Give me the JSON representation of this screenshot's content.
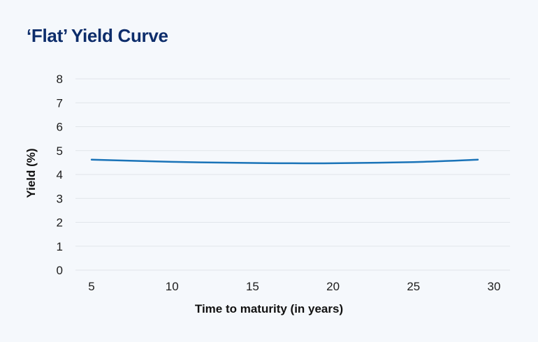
{
  "title": "‘Flat’ Yield Curve",
  "colors": {
    "title": "#0d2d6b",
    "line": "#1a73b8",
    "grid": "#e1e5ea",
    "background": "#f5f8fc"
  },
  "chart_data": {
    "type": "line",
    "title": "‘Flat’ Yield Curve",
    "xlabel": "Time to maturity (in years)",
    "ylabel": "Yield (%)",
    "xlim": [
      4,
      31
    ],
    "ylim": [
      0,
      8
    ],
    "xticks": [
      "5",
      "10",
      "15",
      "20",
      "25",
      "30"
    ],
    "yticks": [
      "0",
      "1",
      "2",
      "3",
      "4",
      "5",
      "6",
      "7",
      "8"
    ],
    "grid": true,
    "legend": "none",
    "series": [
      {
        "x": [
          5,
          10,
          15,
          17.5,
          20,
          25,
          29
        ],
        "values": [
          4.62,
          4.53,
          4.48,
          4.47,
          4.47,
          4.52,
          4.62
        ]
      }
    ]
  }
}
